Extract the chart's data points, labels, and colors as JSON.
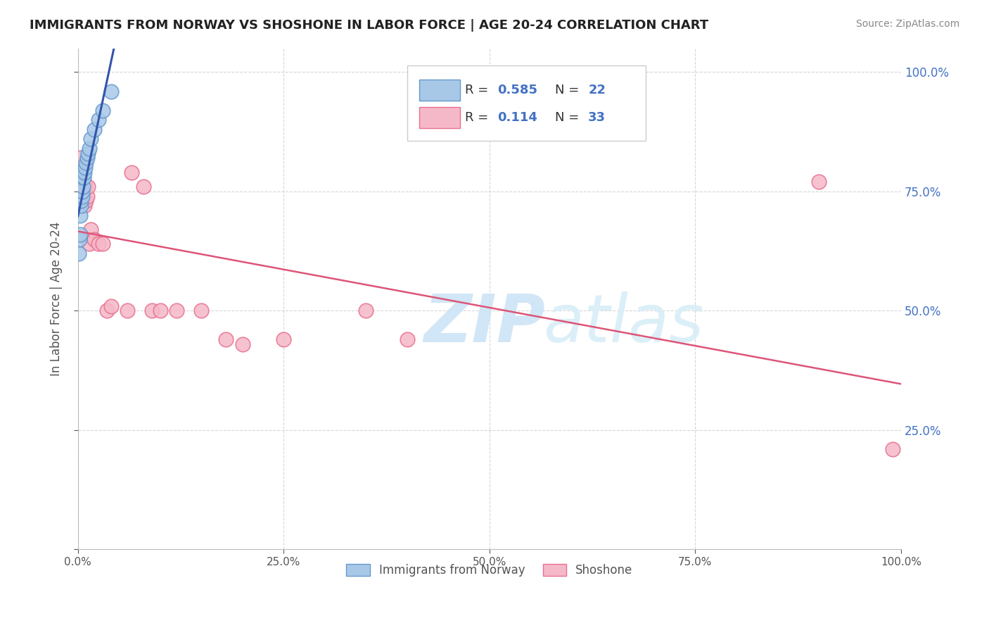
{
  "title": "IMMIGRANTS FROM NORWAY VS SHOSHONE IN LABOR FORCE | AGE 20-24 CORRELATION CHART",
  "source": "Source: ZipAtlas.com",
  "ylabel": "In Labor Force | Age 20-24",
  "xlim": [
    0.0,
    1.0
  ],
  "ylim": [
    0.0,
    1.05
  ],
  "yticks": [
    0.0,
    0.25,
    0.5,
    0.75,
    1.0
  ],
  "ytick_labels_right": [
    "",
    "25.0%",
    "50.0%",
    "75.0%",
    "100.0%"
  ],
  "xtick_vals": [
    0.0,
    0.25,
    0.5,
    0.75,
    1.0
  ],
  "xtick_labels": [
    "0.0%",
    "25.0%",
    "50.0%",
    "75.0%",
    "100.0%"
  ],
  "norway_color": "#a8c8e8",
  "norway_edge": "#6699cc",
  "shoshone_color": "#f5b8c8",
  "shoshone_edge": "#e87090",
  "line_norway": "#3355aa",
  "line_shoshone": "#dd5577",
  "R_norway": 0.585,
  "N_norway": 22,
  "R_shoshone": 0.114,
  "N_shoshone": 33,
  "norway_x": [
    0.001,
    0.002,
    0.003,
    0.003,
    0.004,
    0.004,
    0.005,
    0.005,
    0.006,
    0.006,
    0.007,
    0.008,
    0.009,
    0.01,
    0.011,
    0.012,
    0.014,
    0.016,
    0.02,
    0.025,
    0.03,
    0.04
  ],
  "norway_y": [
    0.62,
    0.65,
    0.66,
    0.7,
    0.72,
    0.73,
    0.74,
    0.75,
    0.76,
    0.78,
    0.78,
    0.79,
    0.8,
    0.81,
    0.82,
    0.83,
    0.84,
    0.86,
    0.88,
    0.9,
    0.92,
    0.96
  ],
  "shoshone_x": [
    0.002,
    0.003,
    0.004,
    0.005,
    0.005,
    0.006,
    0.007,
    0.008,
    0.009,
    0.01,
    0.011,
    0.012,
    0.014,
    0.016,
    0.02,
    0.025,
    0.03,
    0.035,
    0.04,
    0.06,
    0.065,
    0.08,
    0.09,
    0.1,
    0.12,
    0.15,
    0.18,
    0.2,
    0.25,
    0.35,
    0.4,
    0.9,
    0.99
  ],
  "shoshone_y": [
    0.76,
    0.82,
    0.78,
    0.8,
    0.73,
    0.75,
    0.77,
    0.72,
    0.76,
    0.73,
    0.74,
    0.76,
    0.64,
    0.67,
    0.65,
    0.64,
    0.64,
    0.5,
    0.51,
    0.5,
    0.79,
    0.76,
    0.5,
    0.5,
    0.5,
    0.5,
    0.44,
    0.43,
    0.44,
    0.5,
    0.44,
    0.77,
    0.21
  ],
  "background_color": "#ffffff",
  "grid_color": "#cccccc",
  "title_color": "#222222",
  "source_color": "#888888",
  "label_color": "#555555",
  "right_tick_color": "#4472c4",
  "legend_R_color": "#4472c4",
  "legend_N_color": "#4472c4"
}
